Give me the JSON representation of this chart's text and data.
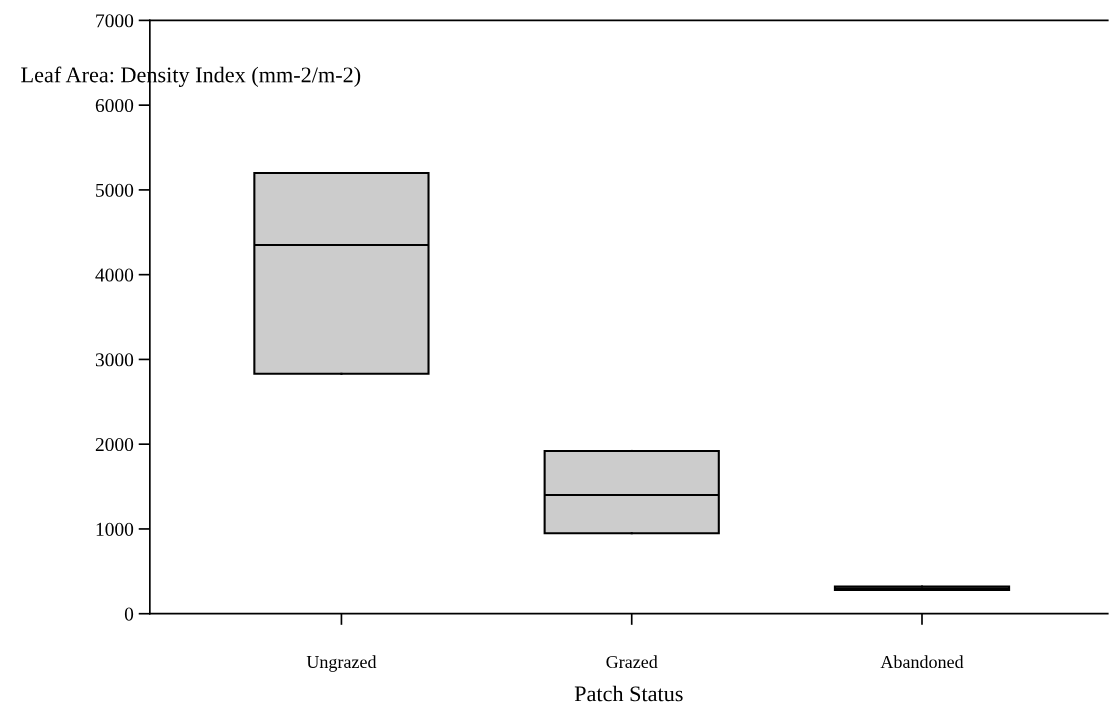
{
  "chart_data": {
    "type": "box",
    "ylabel": "Leaf Area: Density Index (mm-2/m-2)",
    "xlabel": "Patch Status",
    "categories": [
      "Ungrazed",
      "Grazed",
      "Abandoned"
    ],
    "boxes": [
      {
        "low": 2830,
        "q1": 2830,
        "median": 4350,
        "q3": 5200,
        "high": 5200
      },
      {
        "low": 950,
        "q1": 950,
        "median": 1400,
        "q3": 1920,
        "high": 1920
      },
      {
        "low": 280,
        "q1": 280,
        "median": 300,
        "q3": 320,
        "high": 320
      }
    ],
    "color": "#cccccc",
    "ylim": [
      0,
      7000
    ],
    "yticks": [
      0,
      1000,
      2000,
      3000,
      4000,
      5000,
      6000,
      7000
    ],
    "grid": false
  }
}
